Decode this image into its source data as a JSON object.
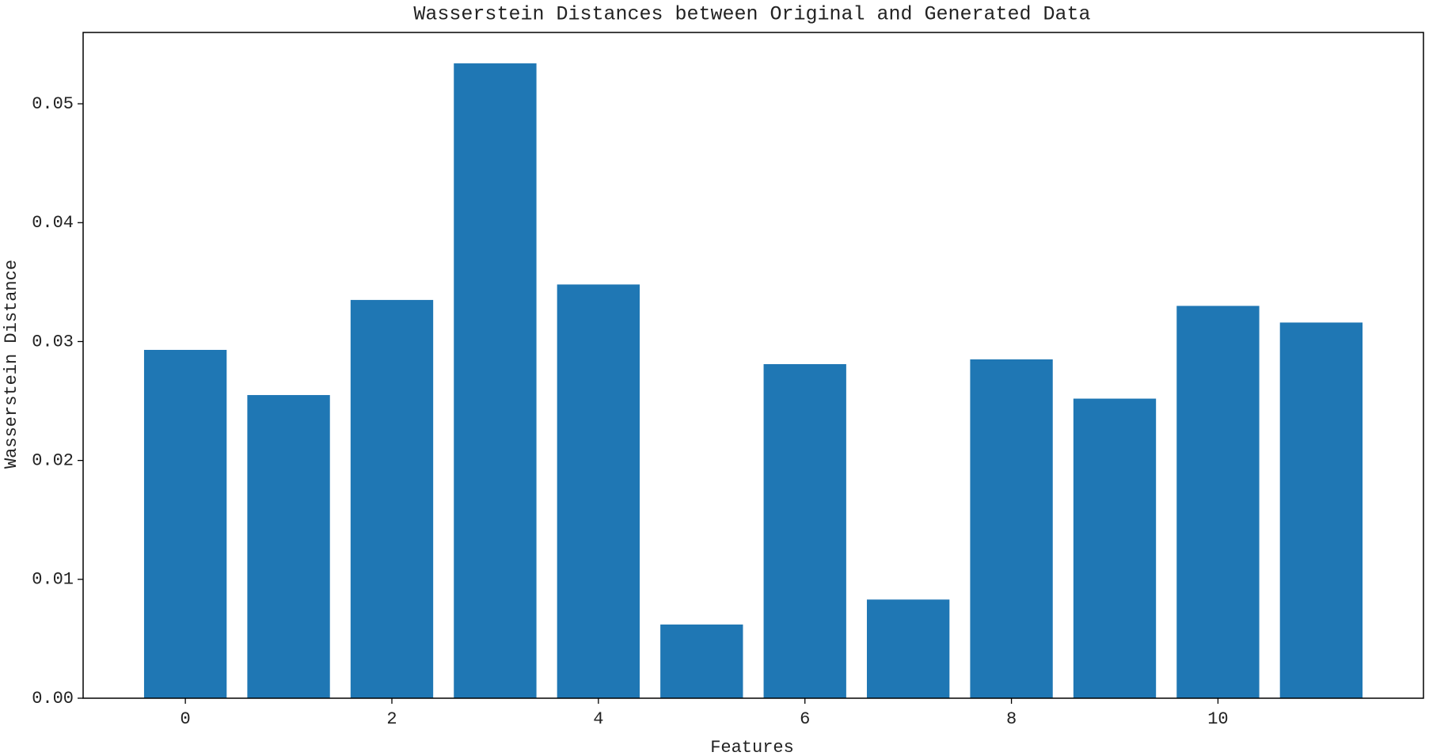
{
  "chart_data": {
    "type": "bar",
    "title": "Wasserstein Distances between Original and Generated Data",
    "x_label": "Features",
    "y_label": "Wasserstein Distance",
    "x": [
      0,
      1,
      2,
      3,
      4,
      5,
      6,
      7,
      8,
      9,
      10,
      11
    ],
    "values": [
      0.0293,
      0.0255,
      0.0335,
      0.0534,
      0.0348,
      0.0062,
      0.0281,
      0.0083,
      0.0285,
      0.0252,
      0.033,
      0.0316
    ],
    "color": "#1f77b4",
    "xlim": [
      -0.99,
      11.99
    ],
    "xticks": [
      0,
      2,
      4,
      6,
      8,
      10
    ],
    "ylim": [
      0,
      0.056
    ],
    "yticks": [
      {
        "value": 0,
        "label": "0.00"
      },
      0.01,
      0.02,
      0.03,
      0.04,
      0.05
    ],
    "grid": false
  }
}
